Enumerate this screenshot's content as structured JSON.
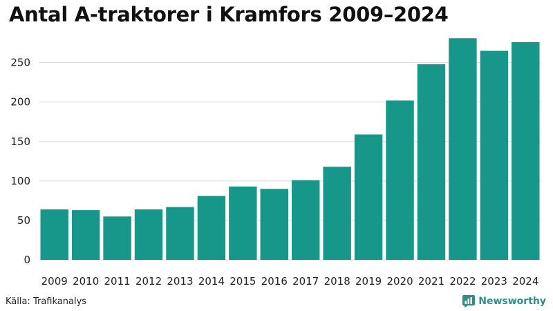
{
  "title": "Antal A-traktorer i Kramfors 2009–2024",
  "source": "Källa: Trafikanalys",
  "brand": "Newsworthy",
  "colors": {
    "bar": "#16978a",
    "brand": "#2b8f8a"
  },
  "chart_data": {
    "type": "bar",
    "title": "Antal A-traktorer i Kramfors 2009–2024",
    "xlabel": "",
    "ylabel": "",
    "categories": [
      "2009",
      "2010",
      "2011",
      "2012",
      "2013",
      "2014",
      "2015",
      "2016",
      "2017",
      "2018",
      "2019",
      "2020",
      "2021",
      "2022",
      "2023",
      "2024"
    ],
    "values": [
      64,
      63,
      55,
      64,
      67,
      81,
      93,
      90,
      101,
      118,
      159,
      202,
      248,
      281,
      265,
      276
    ],
    "ylim": [
      0,
      290
    ],
    "yticks": [
      0,
      50,
      100,
      150,
      200,
      250
    ],
    "grid": true
  }
}
